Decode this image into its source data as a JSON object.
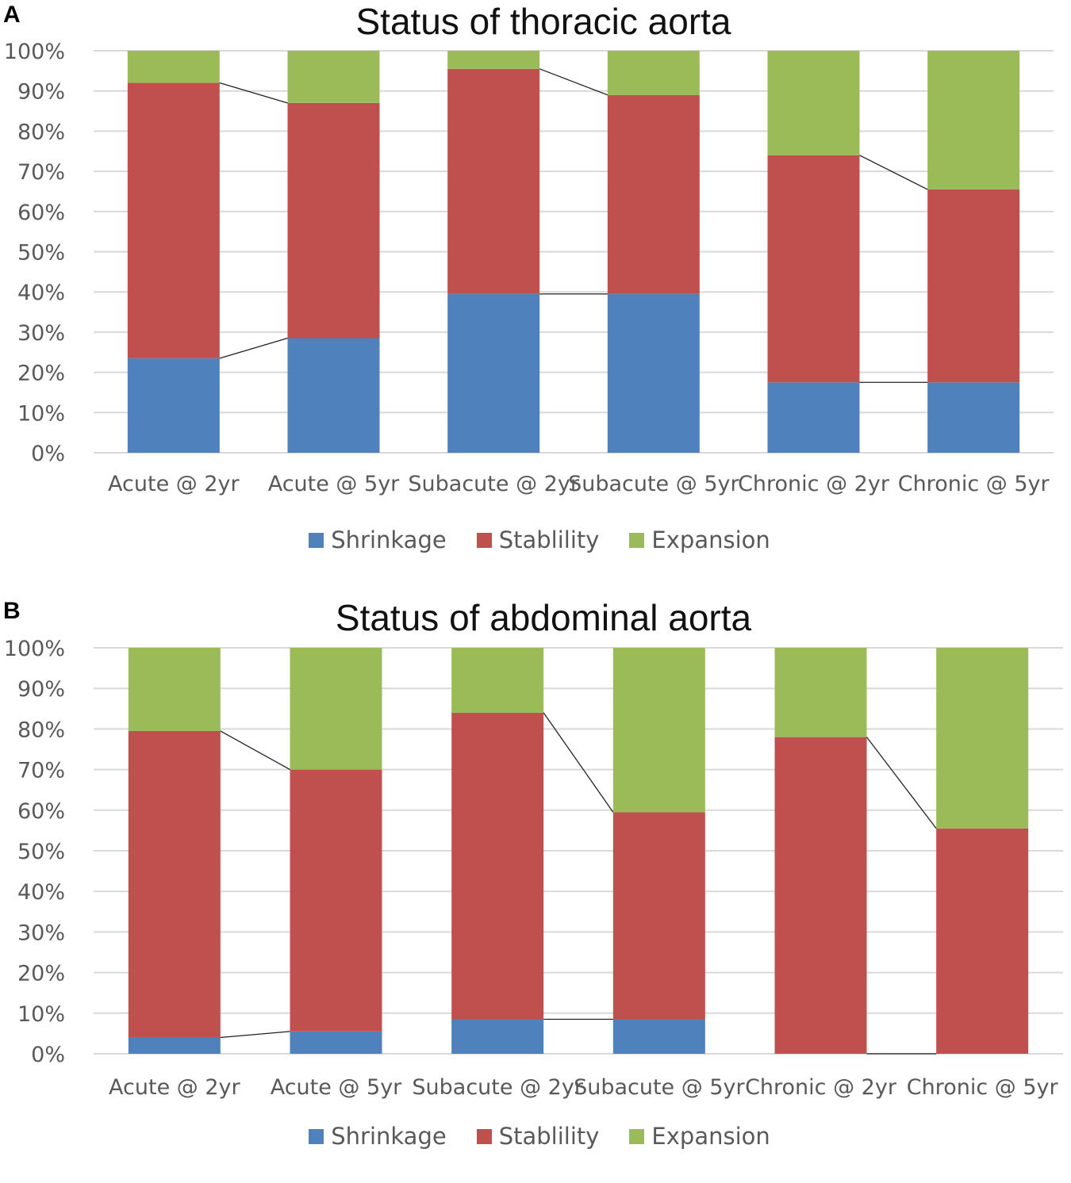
{
  "chart_data": [
    {
      "panel_label": "A",
      "type": "bar",
      "stacked": true,
      "percent": true,
      "title": "Status of thoracic aorta",
      "categories": [
        "Acute @ 2yr",
        "Acute @ 5yr",
        "Subacute @ 2yr",
        "Subacute @ 5yr",
        "Chronic @ 2yr",
        "Chronic @ 5yr"
      ],
      "series": [
        {
          "name": "Shrinkage",
          "color": "#4f81bd",
          "values": [
            23.5,
            28.5,
            39.5,
            39.5,
            17.5,
            17.5
          ]
        },
        {
          "name": "Stablility",
          "color": "#c0504d",
          "values": [
            68.5,
            58.5,
            56.0,
            49.5,
            56.5,
            48.0
          ]
        },
        {
          "name": "Expansion",
          "color": "#9bbb59",
          "values": [
            8.0,
            13.0,
            4.5,
            11.0,
            26.0,
            34.5
          ]
        }
      ],
      "ylim": [
        0,
        100
      ],
      "yticks": [
        "0%",
        "10%",
        "20%",
        "30%",
        "40%",
        "50%",
        "60%",
        "70%",
        "80%",
        "90%",
        "100%"
      ],
      "xlabel": "",
      "ylabel": "",
      "grid": true,
      "legend_position": "bottom",
      "connector_lines": true
    },
    {
      "panel_label": "B",
      "type": "bar",
      "stacked": true,
      "percent": true,
      "title": "Status of abdominal aorta",
      "categories": [
        "Acute @ 2yr",
        "Acute @ 5yr",
        "Subacute @ 2yr",
        "Subacute @ 5yr",
        "Chronic @ 2yr",
        "Chronic @ 5yr"
      ],
      "series": [
        {
          "name": "Shrinkage",
          "color": "#4f81bd",
          "values": [
            4.0,
            5.5,
            8.5,
            8.5,
            0.0,
            0.0
          ]
        },
        {
          "name": "Stablility",
          "color": "#c0504d",
          "values": [
            75.5,
            64.5,
            75.5,
            51.0,
            78.0,
            55.5
          ]
        },
        {
          "name": "Expansion",
          "color": "#9bbb59",
          "values": [
            20.5,
            30.0,
            16.0,
            40.5,
            22.0,
            44.5
          ]
        }
      ],
      "ylim": [
        0,
        100
      ],
      "yticks": [
        "0%",
        "10%",
        "20%",
        "30%",
        "40%",
        "50%",
        "60%",
        "70%",
        "80%",
        "90%",
        "100%"
      ],
      "xlabel": "",
      "ylabel": "",
      "grid": true,
      "legend_position": "bottom",
      "connector_lines": true
    }
  ]
}
